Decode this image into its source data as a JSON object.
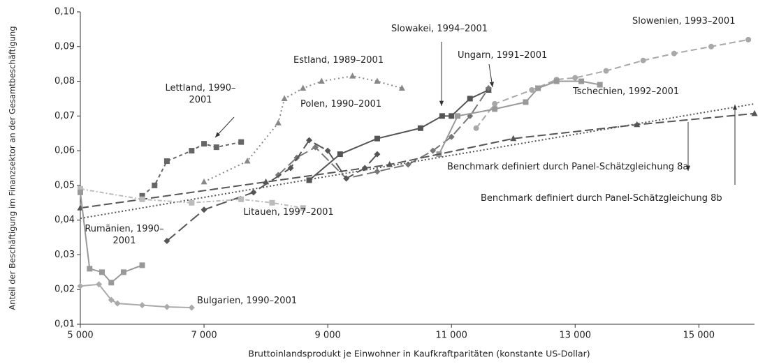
{
  "chart_data": {
    "type": "line",
    "x_label": "Bruttoinlandsprodukt je Einwohner in Kaufkraftparitäten (konstante US-Dollar)",
    "y_label": "Anteil der Beschäftigung im Finanzsektor an der Gesamtbeschäftigung",
    "xlim": [
      5000,
      15900
    ],
    "ylim": [
      0.01,
      0.1
    ],
    "xticks": [
      {
        "value": 5000,
        "label": "5 000"
      },
      {
        "value": 7000,
        "label": "7 000"
      },
      {
        "value": 9000,
        "label": "9 000"
      },
      {
        "value": 11000,
        "label": "11 000"
      },
      {
        "value": 13000,
        "label": "13 000"
      },
      {
        "value": 15000,
        "label": "15 000"
      }
    ],
    "yticks": [
      {
        "value": 0.01,
        "label": "0,01"
      },
      {
        "value": 0.02,
        "label": "0,02"
      },
      {
        "value": 0.03,
        "label": "0,03"
      },
      {
        "value": 0.04,
        "label": "0,04"
      },
      {
        "value": 0.05,
        "label": "0,05"
      },
      {
        "value": 0.06,
        "label": "0,06"
      },
      {
        "value": 0.07,
        "label": "0,07"
      },
      {
        "value": 0.08,
        "label": "0,08"
      },
      {
        "value": 0.09,
        "label": "0,09"
      },
      {
        "value": 0.1,
        "label": "0,10"
      }
    ],
    "series": [
      {
        "name": "Slowenien, 1993–2001",
        "color": "#a8a8a8",
        "dash": "9 5",
        "marker": "circle",
        "x": [
          11400,
          11700,
          12300,
          12700,
          13000,
          13500,
          14100,
          14600,
          15200,
          15800
        ],
        "values": [
          0.0665,
          0.0735,
          0.0775,
          0.0805,
          0.081,
          0.083,
          0.086,
          0.088,
          0.09,
          0.092
        ]
      },
      {
        "name": "Slowakei, 1994–2001",
        "color": "#555555",
        "dash": "",
        "marker": "square",
        "x": [
          8700,
          9200,
          9800,
          10500,
          10850,
          11000,
          11300,
          11600
        ],
        "values": [
          0.0515,
          0.059,
          0.0635,
          0.0665,
          0.07,
          0.07,
          0.075,
          0.0775
        ]
      },
      {
        "name": "Ungarn, 1991–2001",
        "color": "#777777",
        "dash": "14 6",
        "marker": "diamond",
        "x": [
          8200,
          8500,
          8800,
          9300,
          9800,
          10300,
          10700,
          11000,
          11300,
          11600
        ],
        "values": [
          0.053,
          0.058,
          0.061,
          0.052,
          0.054,
          0.056,
          0.06,
          0.064,
          0.07,
          0.078
        ]
      },
      {
        "name": "Estland, 1989–2001",
        "color": "#888888",
        "dash": "2 4",
        "marker": "triangle",
        "x": [
          7000,
          7700,
          8200,
          8300,
          8600,
          8900,
          9400,
          9800,
          10200
        ],
        "values": [
          0.051,
          0.057,
          0.068,
          0.075,
          0.078,
          0.08,
          0.0815,
          0.08,
          0.078
        ]
      },
      {
        "name": "Lettland, 1990–2001",
        "color": "#666666",
        "dash": "5 4",
        "marker": "square",
        "x": [
          6000,
          6200,
          6400,
          6800,
          7000,
          7200,
          7600
        ],
        "values": [
          0.047,
          0.05,
          0.057,
          0.06,
          0.062,
          0.061,
          0.0625
        ]
      },
      {
        "name": "Polen, 1990–2001",
        "color": "#555555",
        "dash": "16 6",
        "marker": "diamond",
        "x": [
          6400,
          7000,
          7800,
          8400,
          8700,
          9000,
          9300,
          9600,
          9800
        ],
        "values": [
          0.034,
          0.043,
          0.048,
          0.055,
          0.063,
          0.06,
          0.052,
          0.055,
          0.059
        ]
      },
      {
        "name": "Tschechien, 1992–2001",
        "color": "#999999",
        "dash": "",
        "marker": "square",
        "x": [
          10800,
          11100,
          11700,
          12200,
          12400,
          12700,
          13100,
          13400
        ],
        "values": [
          0.059,
          0.07,
          0.072,
          0.074,
          0.078,
          0.08,
          0.08,
          0.079
        ]
      },
      {
        "name": "Benchmark definiert durch Panel-Schätzgleichung 8a",
        "color": "#555555",
        "dash": "12 5",
        "marker": "triangle",
        "x": [
          5000,
          8000,
          10000,
          12000,
          14000,
          15900
        ],
        "values": [
          0.0435,
          0.051,
          0.056,
          0.0635,
          0.0675,
          0.0707
        ]
      },
      {
        "name": "Benchmark definiert durch Panel-Schätzgleichung 8b",
        "color": "#555555",
        "dash": "2 3",
        "marker": "none",
        "x": [
          5000,
          15900
        ],
        "values": [
          0.0405,
          0.0735
        ]
      },
      {
        "name": "Litauen, 1997–2001",
        "color": "#bbbbbb",
        "dash": "6 3 2 3",
        "marker": "square",
        "x": [
          5000,
          6000,
          6800,
          7600,
          8100,
          8600
        ],
        "values": [
          0.049,
          0.046,
          0.045,
          0.046,
          0.045,
          0.0435
        ]
      },
      {
        "name": "Rumänien, 1990–2001",
        "color": "#999999",
        "dash": "",
        "marker": "square",
        "x": [
          5000,
          5150,
          5350,
          5500,
          5700,
          6000
        ],
        "values": [
          0.048,
          0.026,
          0.025,
          0.022,
          0.025,
          0.027
        ]
      },
      {
        "name": "Bulgarien, 1990–2001",
        "color": "#aaaaaa",
        "dash": "",
        "marker": "diamond",
        "x": [
          5000,
          5300,
          5500,
          5600,
          6000,
          6400,
          6800
        ],
        "values": [
          0.021,
          0.0215,
          0.017,
          0.016,
          0.0155,
          0.015,
          0.0148
        ]
      }
    ]
  }
}
